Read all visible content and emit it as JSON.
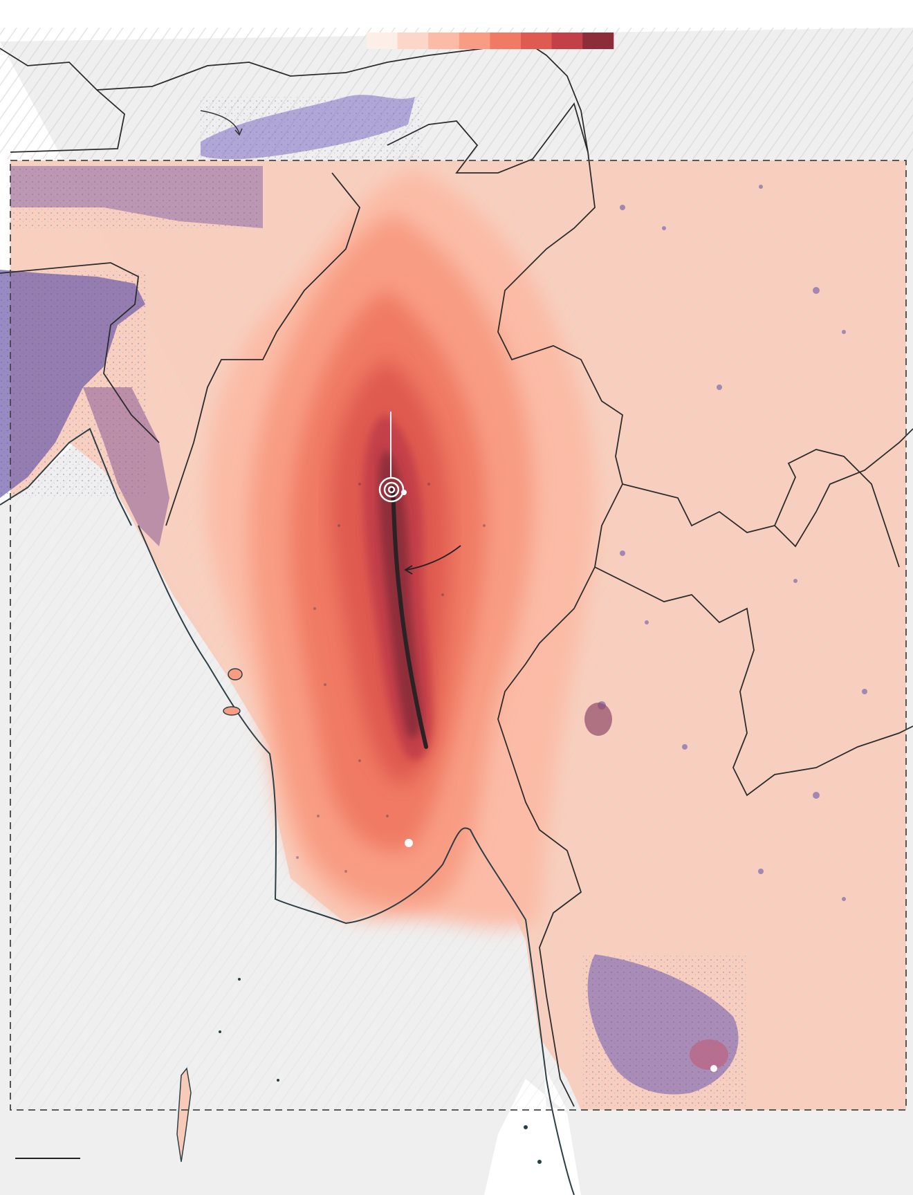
{
  "map": {
    "legend": {
      "colors": [
        "#fdeee8",
        "#fcd7c9",
        "#fbbba6",
        "#f89c83",
        "#f07a64",
        "#df5a50",
        "#c44048",
        "#8e2d3a"
      ]
    },
    "colors": {
      "sea": "#ffffff",
      "land_outside": "#efefef",
      "hillshade": "#dedede",
      "shaking_base": "#f8cbb8",
      "population": "#5a4fa8",
      "border": "#2b2b2b",
      "coastline": "#2c3e45",
      "fault": "#2a2224",
      "frame": "#444444",
      "marker": "#ffffff"
    },
    "features": [
      {
        "name": "epicenter",
        "icon": "concentric-rings-icon"
      },
      {
        "name": "fault-rupture",
        "icon": "fault-line"
      },
      {
        "name": "city-marker",
        "icon": "white-dot-icon"
      },
      {
        "name": "annotation-arrow",
        "icon": "curved-arrow-icon"
      },
      {
        "name": "scale-bar",
        "icon": "scale-bar-icon"
      }
    ]
  }
}
